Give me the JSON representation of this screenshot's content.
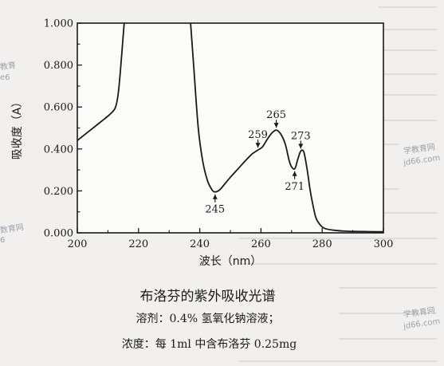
{
  "chart_data": {
    "type": "line",
    "xlabel": "波长（nm）",
    "ylabel": "吸收度（A）",
    "xlim": [
      200,
      300
    ],
    "ylim": [
      0,
      1.0
    ],
    "xticks": [
      "200",
      "220",
      "240",
      "260",
      "280",
      "300"
    ],
    "yticks": [
      "0.000",
      "0.200",
      "0.400",
      "0.600",
      "0.800",
      "1.000"
    ],
    "grid": false,
    "series": [
      {
        "color": "#1a1a1a",
        "segments": [
          {
            "x": [
              200,
              203,
              206,
              209,
              211,
              212.5,
              213.5,
              214.5,
              215.3
            ],
            "y": [
              0.44,
              0.475,
              0.51,
              0.545,
              0.57,
              0.6,
              0.68,
              0.85,
              1.0
            ]
          },
          {
            "x": [
              237,
              238,
              239.5,
              241,
              242.5,
              244,
              245,
              246.5,
              248,
              250,
              252.5,
              255,
              257,
              259,
              260.5,
              262,
              263.5,
              265,
              266.5,
              268,
              269.5,
              271,
              272,
              273,
              274,
              275,
              276,
              277,
              278,
              279.5,
              281,
              284,
              288,
              294,
              300
            ],
            "y": [
              1.0,
              0.8,
              0.5,
              0.34,
              0.25,
              0.205,
              0.195,
              0.205,
              0.23,
              0.265,
              0.305,
              0.345,
              0.375,
              0.395,
              0.41,
              0.445,
              0.475,
              0.49,
              0.47,
              0.42,
              0.33,
              0.305,
              0.35,
              0.39,
              0.385,
              0.31,
              0.21,
              0.13,
              0.07,
              0.035,
              0.02,
              0.012,
              0.008,
              0.006,
              0.005
            ]
          }
        ]
      }
    ],
    "annotations": [
      {
        "label": "245",
        "x": 245,
        "y": 0.195,
        "position": "below"
      },
      {
        "label": "259",
        "x": 259,
        "y": 0.395,
        "position": "above"
      },
      {
        "label": "265",
        "x": 265,
        "y": 0.49,
        "position": "above"
      },
      {
        "label": "271",
        "x": 271,
        "y": 0.305,
        "position": "below"
      },
      {
        "label": "273",
        "x": 273,
        "y": 0.39,
        "position": "above"
      }
    ]
  },
  "caption": {
    "title": "布洛芬的紫外吸收光谱",
    "solvent": "溶剂：0.4% 氢氧化钠溶液；",
    "concentration": "浓度：每 1ml 中含布洛芬 0.25mg"
  },
  "watermarks": [
    {
      "text": "学教育网"
    },
    {
      "text": "jd66.com"
    },
    {
      "text": "学教育网"
    },
    {
      "text": "jd66.com"
    },
    {
      "text": "数育网"
    },
    {
      "text": "6"
    },
    {
      "text": "教育"
    },
    {
      "text": "e6"
    }
  ]
}
